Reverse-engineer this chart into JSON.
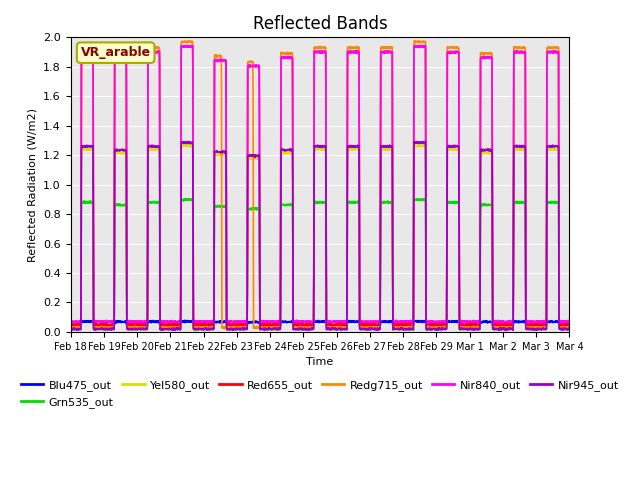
{
  "title": "Reflected Bands",
  "xlabel": "Time",
  "ylabel": "Reflected Radiation (W/m2)",
  "annotation": "VR_arable",
  "ylim": [
    0,
    2.0
  ],
  "yticks": [
    0.0,
    0.2,
    0.4,
    0.6,
    0.8,
    1.0,
    1.2,
    1.4,
    1.6,
    1.8,
    2.0
  ],
  "xtick_labels": [
    "Feb 18",
    "Feb 19",
    "Feb 20",
    "Feb 21",
    "Feb 22",
    "Feb 23",
    "Feb 24",
    "Feb 25",
    "Feb 26",
    "Feb 27",
    "Feb 28",
    "Feb 29",
    "Mar 1",
    "Mar 2",
    "Mar 3",
    "Mar 4"
  ],
  "series_order": [
    "Blu475_out",
    "Grn535_out",
    "Yel580_out",
    "Red655_out",
    "Redg715_out",
    "Nir840_out",
    "Nir945_out"
  ],
  "series": {
    "Blu475_out": {
      "color": "#0000ff",
      "lw": 1.2
    },
    "Grn535_out": {
      "color": "#00dd00",
      "lw": 1.2
    },
    "Yel580_out": {
      "color": "#dddd00",
      "lw": 1.2
    },
    "Red655_out": {
      "color": "#ff0000",
      "lw": 1.2
    },
    "Redg715_out": {
      "color": "#ff8800",
      "lw": 1.2
    },
    "Nir840_out": {
      "color": "#ff00ff",
      "lw": 1.2
    },
    "Nir945_out": {
      "color": "#9900cc",
      "lw": 1.2
    }
  },
  "bg_color": "#e8e8e8",
  "title_fontsize": 12,
  "legend_fontsize": 8,
  "n_days": 15
}
